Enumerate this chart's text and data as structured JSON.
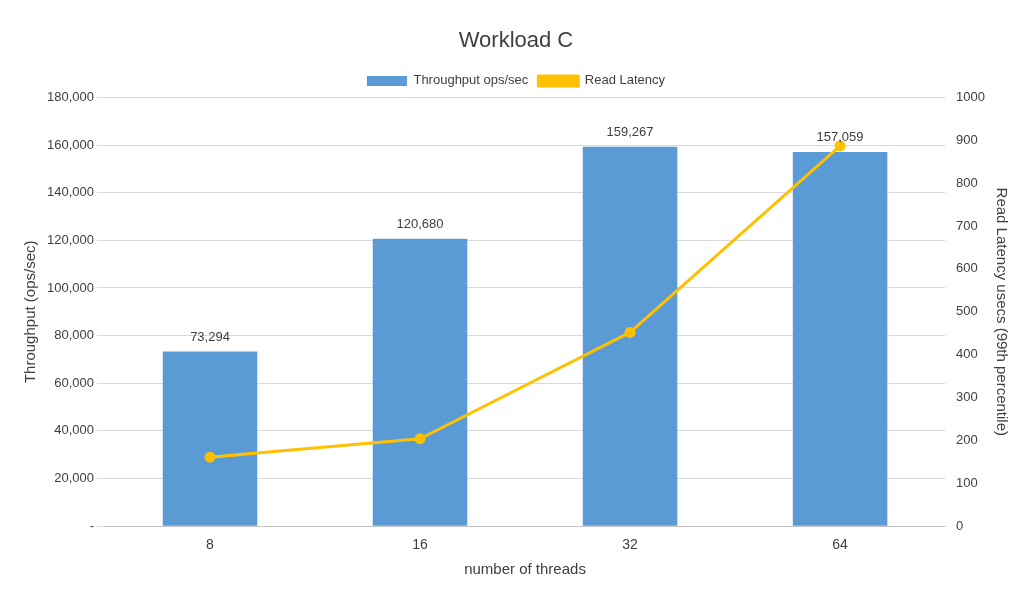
{
  "chart_data": {
    "type": "bar",
    "title": "Workload C",
    "xlabel": "number of threads",
    "ylabel": "Throughput (ops/sec)",
    "y2label": "Read Latency usecs (99th percentile)",
    "categories": [
      "8",
      "16",
      "32",
      "64"
    ],
    "series": [
      {
        "name": "Throughput ops/sec",
        "color": "#5b9bd5",
        "values": [
          73294,
          120680,
          159267,
          157059
        ],
        "value_labels": [
          "73,294",
          "120,680",
          "159,267",
          "157,059"
        ]
      },
      {
        "name": "Read Latency",
        "type": "line",
        "axis": "y2",
        "color": "#ffc000",
        "values": [
          161,
          204,
          452,
          887
        ],
        "marker": "circle"
      }
    ],
    "ylim": [
      0,
      180000
    ],
    "yticks": [
      {
        "value": 0,
        "label": "-"
      },
      {
        "value": 20000,
        "label": "20,000"
      },
      {
        "value": 40000,
        "label": "40,000"
      },
      {
        "value": 60000,
        "label": "60,000"
      },
      {
        "value": 80000,
        "label": "80,000"
      },
      {
        "value": 100000,
        "label": "100,000"
      },
      {
        "value": 120000,
        "label": "120,000"
      },
      {
        "value": 140000,
        "label": "140,000"
      },
      {
        "value": 160000,
        "label": "160,000"
      },
      {
        "value": 180000,
        "label": "180,000"
      }
    ],
    "y2lim": [
      0,
      1000
    ],
    "y2ticks": [
      0,
      100,
      200,
      300,
      400,
      500,
      600,
      700,
      800,
      900,
      1000
    ],
    "grid": "y",
    "legend": "top"
  }
}
